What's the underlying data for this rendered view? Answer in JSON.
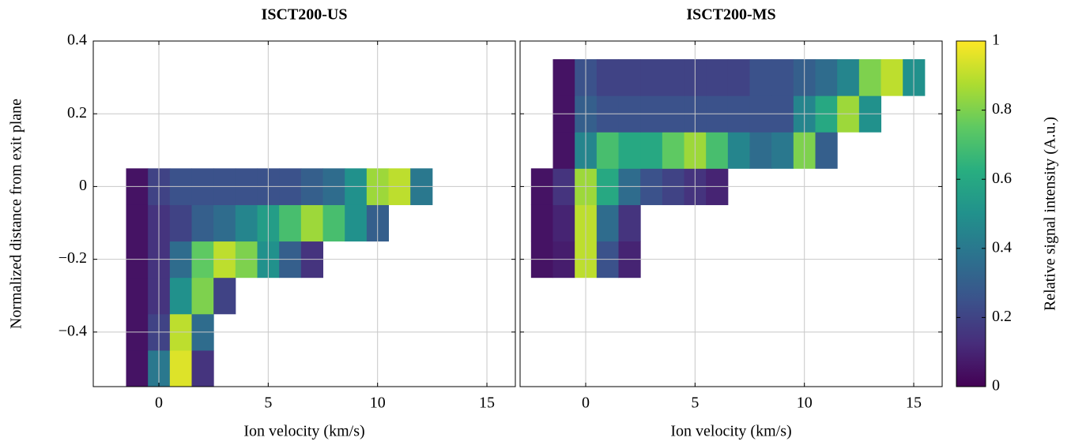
{
  "chart_data": [
    {
      "type": "heatmap",
      "title": "ISCT200-US",
      "x_label": "Ion velocity (km/s)",
      "y_label": "Normalized distance from exit plane",
      "xlim": [
        -3,
        16.3
      ],
      "ylim": [
        -0.55,
        0.4
      ],
      "xticks": [
        0,
        5,
        10,
        15
      ],
      "yticks": [
        {
          "value": -0.4,
          "label": "−0.4"
        },
        {
          "value": -0.2,
          "label": "−0.2"
        },
        0,
        0.2,
        0.4
      ],
      "grid": true,
      "x": [
        -1,
        0,
        1,
        2,
        3,
        4,
        5,
        6,
        7,
        8,
        9,
        10,
        11,
        12
      ],
      "y": [
        -0.5,
        -0.4,
        -0.3,
        -0.2,
        -0.1,
        0
      ],
      "z": [
        [
          0.05,
          0.4,
          0.95,
          0.15,
          null,
          null,
          null,
          null,
          null,
          null,
          null,
          null,
          null,
          null
        ],
        [
          0.05,
          0.2,
          0.9,
          0.35,
          null,
          null,
          null,
          null,
          null,
          null,
          null,
          null,
          null,
          null
        ],
        [
          0.05,
          0.15,
          0.5,
          0.8,
          0.2,
          null,
          null,
          null,
          null,
          null,
          null,
          null,
          null,
          null
        ],
        [
          0.05,
          0.15,
          0.35,
          0.75,
          0.9,
          0.8,
          0.5,
          0.3,
          0.15,
          null,
          null,
          null,
          null,
          null
        ],
        [
          0.05,
          0.15,
          0.2,
          0.3,
          0.35,
          0.45,
          0.55,
          0.7,
          0.85,
          0.7,
          0.5,
          0.3,
          null,
          null
        ],
        [
          0.05,
          0.2,
          0.25,
          0.25,
          0.25,
          0.25,
          0.25,
          0.25,
          0.3,
          0.35,
          0.5,
          0.85,
          0.9,
          0.4
        ]
      ]
    },
    {
      "type": "heatmap",
      "title": "ISCT200-MS",
      "x_label": "Ion velocity (km/s)",
      "xlim": [
        -3,
        16.3
      ],
      "ylim": [
        -0.55,
        0.4
      ],
      "xticks": [
        0,
        5,
        10,
        15
      ],
      "grid": true,
      "x": [
        -2,
        -1,
        0,
        1,
        2,
        3,
        4,
        5,
        6,
        7,
        8,
        9,
        10,
        11,
        12,
        13,
        14,
        15
      ],
      "y": [
        -0.2,
        -0.1,
        0,
        0.1,
        0.2,
        0.3
      ],
      "z": [
        [
          0.05,
          0.08,
          0.9,
          0.25,
          0.1,
          null,
          null,
          null,
          null,
          null,
          null,
          null,
          null,
          null,
          null,
          null,
          null,
          null
        ],
        [
          0.05,
          0.1,
          0.9,
          0.35,
          0.15,
          null,
          null,
          null,
          null,
          null,
          null,
          null,
          null,
          null,
          null,
          null,
          null,
          null
        ],
        [
          0.05,
          0.15,
          0.85,
          0.6,
          0.35,
          0.25,
          0.2,
          0.15,
          0.1,
          null,
          null,
          null,
          null,
          null,
          null,
          null,
          null,
          null
        ],
        [
          null,
          0.05,
          0.45,
          0.7,
          0.6,
          0.6,
          0.75,
          0.85,
          0.7,
          0.45,
          0.35,
          0.4,
          0.8,
          0.3,
          null,
          null,
          null,
          null
        ],
        [
          null,
          0.05,
          0.3,
          0.25,
          0.25,
          0.25,
          0.25,
          0.25,
          0.25,
          0.25,
          0.25,
          0.25,
          0.45,
          0.6,
          0.85,
          0.5,
          null,
          null
        ],
        [
          null,
          0.05,
          0.25,
          0.2,
          0.2,
          0.2,
          0.2,
          0.2,
          0.2,
          0.2,
          0.25,
          0.25,
          0.3,
          0.35,
          0.45,
          0.8,
          0.9,
          0.5
        ]
      ]
    },
    {
      "type": "colorbar",
      "label": "Relative signal intensity (A.u.)",
      "colormap": "viridis",
      "ylim": [
        0,
        1
      ],
      "yticks": [
        0,
        0.2,
        0.4,
        0.6,
        0.8,
        1
      ]
    }
  ]
}
